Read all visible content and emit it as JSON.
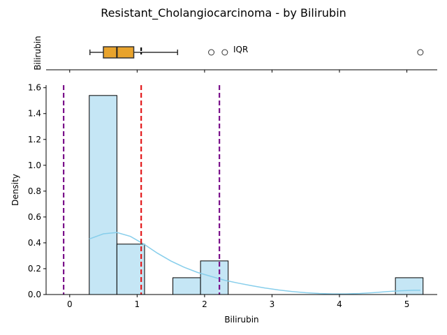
{
  "chart_data": {
    "title": "Resistant_Cholangiocarcinoma - by Bilirubin",
    "colors": {
      "box": "#e8a32c",
      "hist_fill": "#c5e6f5",
      "kde": "#87ceeb",
      "mean_line": "#e31a1c",
      "range_line": "#7a0f8a"
    },
    "boxplot": {
      "ylabel": "Bilirubin",
      "whisker_low": 0.3,
      "q1": 0.5,
      "median": 0.7,
      "q3": 0.95,
      "whisker_high": 1.6,
      "mean_marker": 1.06,
      "outliers": [
        2.1,
        2.3,
        5.2
      ],
      "annotation": "IQR"
    },
    "histogram": {
      "type": "bar",
      "xlabel": "Bilirubin",
      "ylabel": "Density",
      "xlim": [
        -0.35,
        5.45
      ],
      "ylim": [
        0,
        1.62
      ],
      "xticks": [
        "0",
        "1",
        "2",
        "3",
        "4",
        "5"
      ],
      "yticks": [
        "0.0",
        "0.2",
        "0.4",
        "0.6",
        "0.8",
        "1.0",
        "1.2",
        "1.4",
        "1.6"
      ],
      "bins": [
        {
          "x0": 0.29,
          "x1": 0.7,
          "density": 1.54
        },
        {
          "x0": 0.7,
          "x1": 1.11,
          "density": 0.39
        },
        {
          "x0": 1.11,
          "x1": 1.53,
          "density": 0.0
        },
        {
          "x0": 1.53,
          "x1": 1.94,
          "density": 0.13
        },
        {
          "x0": 1.94,
          "x1": 2.35,
          "density": 0.26
        },
        {
          "x0": 2.35,
          "x1": 2.77,
          "density": 0.0
        },
        {
          "x0": 2.77,
          "x1": 3.18,
          "density": 0.0
        },
        {
          "x0": 3.18,
          "x1": 3.59,
          "density": 0.0
        },
        {
          "x0": 3.59,
          "x1": 4.0,
          "density": 0.0
        },
        {
          "x0": 4.0,
          "x1": 4.42,
          "density": 0.0
        },
        {
          "x0": 4.42,
          "x1": 4.83,
          "density": 0.0
        },
        {
          "x0": 4.83,
          "x1": 5.24,
          "density": 0.13
        }
      ],
      "kde": {
        "x": [
          0.29,
          0.5,
          0.7,
          0.9,
          1.1,
          1.3,
          1.5,
          1.7,
          1.9,
          2.1,
          2.3,
          2.5,
          2.7,
          2.9,
          3.1,
          3.3,
          3.5,
          3.7,
          3.9,
          4.1,
          4.3,
          4.5,
          4.7,
          4.9,
          5.1,
          5.2
        ],
        "y": [
          0.43,
          0.47,
          0.48,
          0.45,
          0.39,
          0.32,
          0.26,
          0.21,
          0.17,
          0.14,
          0.11,
          0.088,
          0.068,
          0.05,
          0.035,
          0.023,
          0.014,
          0.008,
          0.005,
          0.005,
          0.008,
          0.014,
          0.022,
          0.029,
          0.033,
          0.033
        ]
      },
      "vlines": [
        {
          "x": -0.09,
          "kind": "range"
        },
        {
          "x": 1.06,
          "kind": "mean"
        },
        {
          "x": 2.22,
          "kind": "range"
        }
      ]
    }
  }
}
